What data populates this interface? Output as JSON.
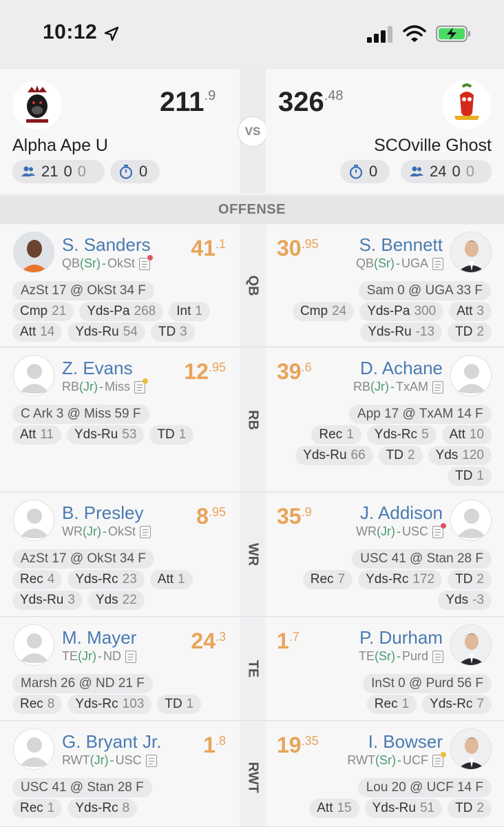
{
  "status_bar": {
    "time": "10:12"
  },
  "matchup": {
    "vs_label": "VS",
    "left": {
      "name": "Alpha Ape U",
      "score_int": "211",
      "score_dec": ".9",
      "roster": "21",
      "roster_a": "0",
      "roster_b": "0",
      "clock": "0"
    },
    "right": {
      "name": "SCOville Ghost",
      "score_int": "326",
      "score_dec": ".48",
      "roster": "24",
      "roster_a": "0",
      "roster_b": "0",
      "clock": "0"
    }
  },
  "section": "OFFENSE",
  "rows": [
    {
      "pos": "QB",
      "left": {
        "name": "S. Sanders",
        "pos": "QB",
        "cls": "Sr",
        "team": "OkSt",
        "score_int": "41",
        "score_dec": ".1",
        "game": "AzSt 17 @ OkSt 34 F",
        "stats": [
          {
            "k": "Cmp",
            "v": "21"
          },
          {
            "k": "Yds-Pa",
            "v": "268"
          },
          {
            "k": "Int",
            "v": "1"
          },
          {
            "k": "Att",
            "v": "14"
          },
          {
            "k": "Yds-Ru",
            "v": "54"
          },
          {
            "k": "TD",
            "v": "3"
          }
        ]
      },
      "right": {
        "name": "S. Bennett",
        "pos": "QB",
        "cls": "Sr",
        "team": "UGA",
        "score_int": "30",
        "score_dec": ".95",
        "game": "Sam 0 @ UGA 33 F",
        "stats": [
          {
            "k": "Cmp",
            "v": "24"
          },
          {
            "k": "Yds-Pa",
            "v": "300"
          },
          {
            "k": "Att",
            "v": "3"
          },
          {
            "k": "Yds-Ru",
            "v": "-13"
          },
          {
            "k": "TD",
            "v": "2"
          }
        ]
      }
    },
    {
      "pos": "RB",
      "left": {
        "name": "Z. Evans",
        "pos": "RB",
        "cls": "Jr",
        "team": "Miss",
        "score_int": "12",
        "score_dec": ".95",
        "game": "C Ark 3 @ Miss 59 F",
        "stats": [
          {
            "k": "Att",
            "v": "11"
          },
          {
            "k": "Yds-Ru",
            "v": "53"
          },
          {
            "k": "TD",
            "v": "1"
          }
        ]
      },
      "right": {
        "name": "D. Achane",
        "pos": "RB",
        "cls": "Jr",
        "team": "TxAM",
        "score_int": "39",
        "score_dec": ".6",
        "game": "App 17 @ TxAM 14 F",
        "stats": [
          {
            "k": "Rec",
            "v": "1"
          },
          {
            "k": "Yds-Rc",
            "v": "5"
          },
          {
            "k": "Att",
            "v": "10"
          },
          {
            "k": "Yds-Ru",
            "v": "66"
          },
          {
            "k": "TD",
            "v": "2"
          },
          {
            "k": "Yds",
            "v": "120"
          },
          {
            "k": "TD",
            "v": "1"
          }
        ]
      }
    },
    {
      "pos": "WR",
      "left": {
        "name": "B. Presley",
        "pos": "WR",
        "cls": "Jr",
        "team": "OkSt",
        "score_int": "8",
        "score_dec": ".95",
        "game": "AzSt 17 @ OkSt 34 F",
        "stats": [
          {
            "k": "Rec",
            "v": "4"
          },
          {
            "k": "Yds-Rc",
            "v": "23"
          },
          {
            "k": "Att",
            "v": "1"
          },
          {
            "k": "Yds-Ru",
            "v": "3"
          },
          {
            "k": "Yds",
            "v": "22"
          }
        ]
      },
      "right": {
        "name": "J. Addison",
        "pos": "WR",
        "cls": "Jr",
        "team": "USC",
        "score_int": "35",
        "score_dec": ".9",
        "game": "USC 41 @ Stan 28 F",
        "stats": [
          {
            "k": "Rec",
            "v": "7"
          },
          {
            "k": "Yds-Rc",
            "v": "172"
          },
          {
            "k": "TD",
            "v": "2"
          },
          {
            "k": "Yds",
            "v": "-3"
          }
        ]
      }
    },
    {
      "pos": "TE",
      "left": {
        "name": "M. Mayer",
        "pos": "TE",
        "cls": "Jr",
        "team": "ND",
        "score_int": "24",
        "score_dec": ".3",
        "game": "Marsh 26 @ ND 21 F",
        "stats": [
          {
            "k": "Rec",
            "v": "8"
          },
          {
            "k": "Yds-Rc",
            "v": "103"
          },
          {
            "k": "TD",
            "v": "1"
          }
        ]
      },
      "right": {
        "name": "P. Durham",
        "pos": "TE",
        "cls": "Sr",
        "team": "Purd",
        "score_int": "1",
        "score_dec": ".7",
        "game": "InSt 0 @ Purd 56 F",
        "stats": [
          {
            "k": "Rec",
            "v": "1"
          },
          {
            "k": "Yds-Rc",
            "v": "7"
          }
        ]
      }
    },
    {
      "pos": "RWT",
      "left": {
        "name": "G. Bryant Jr.",
        "pos": "RWT",
        "cls": "Jr",
        "team": "USC",
        "score_int": "1",
        "score_dec": ".8",
        "game": "USC 41 @ Stan 28 F",
        "stats": [
          {
            "k": "Rec",
            "v": "1"
          },
          {
            "k": "Yds-Rc",
            "v": "8"
          }
        ]
      },
      "right": {
        "name": "I. Bowser",
        "pos": "RWT",
        "cls": "Sr",
        "team": "UCF",
        "score_int": "19",
        "score_dec": ".35",
        "game": "Lou 20 @ UCF 14 F",
        "stats": [
          {
            "k": "Att",
            "v": "15"
          },
          {
            "k": "Yds-Ru",
            "v": "51"
          },
          {
            "k": "TD",
            "v": "2"
          }
        ]
      }
    }
  ],
  "colors": {
    "accent_blue": "#4a7bb0",
    "score_orange": "#e8a458",
    "class_green": "#4a9a6c",
    "alert_red": "#e05560",
    "alert_yellow": "#e8c040"
  }
}
